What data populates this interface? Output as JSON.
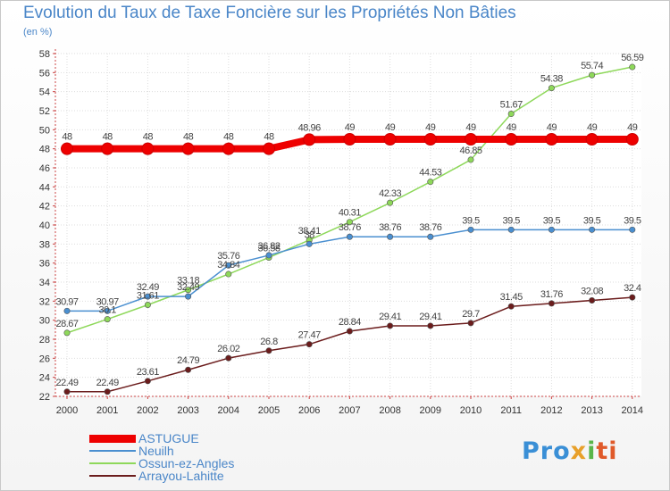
{
  "chart_data": {
    "type": "line",
    "title": "Evolution du Taux de Taxe Foncière sur les Propriétés Non Bâties",
    "ylabel": "(en %)",
    "x": [
      "2000",
      "2001",
      "2002",
      "2003",
      "2004",
      "2005",
      "2006",
      "2007",
      "2008",
      "2009",
      "2010",
      "2011",
      "2012",
      "2013",
      "2014"
    ],
    "ylim": [
      22,
      58
    ],
    "yticks": [
      22,
      24,
      26,
      28,
      30,
      32,
      34,
      36,
      38,
      40,
      42,
      44,
      46,
      48,
      50,
      52,
      54,
      56,
      58
    ],
    "grid": true,
    "series": [
      {
        "name": "ASTUGUE",
        "color": "#ee0000",
        "values": [
          48,
          48,
          48,
          48,
          48,
          48,
          48.96,
          49,
          49,
          49,
          49,
          49,
          49,
          49,
          49
        ],
        "labels": [
          "48",
          "48",
          "48",
          "48",
          "48",
          "48",
          "48.96",
          "49",
          "49",
          "49",
          "49",
          "49",
          "49",
          "49",
          "49"
        ]
      },
      {
        "name": "Neuilh",
        "color": "#4a8fd0",
        "values": [
          30.97,
          30.97,
          32.49,
          32.49,
          35.76,
          36.82,
          38,
          38.76,
          38.76,
          38.76,
          39.5,
          39.5,
          39.5,
          39.5,
          39.5
        ],
        "labels": [
          "30.97",
          "30.97",
          "32.49",
          "32.49",
          "35.76",
          "36.82",
          "38",
          "38.76",
          "38.76",
          "38.76",
          "39.5",
          "39.5",
          "39.5",
          "39.5",
          "39.5"
        ]
      },
      {
        "name": "Ossun-ez-Angles",
        "color": "#8ed85a",
        "values": [
          28.67,
          30.1,
          31.61,
          33.18,
          34.84,
          36.58,
          38.41,
          40.31,
          42.33,
          44.53,
          46.85,
          51.67,
          54.38,
          55.74,
          56.59
        ],
        "labels": [
          "28.67",
          "30.1",
          "31.61",
          "33.18",
          "34.84",
          "36.58",
          "38.41",
          "40.31",
          "42.33",
          "44.53",
          "46.85",
          "51.67",
          "54.38",
          "55.74",
          "56.59"
        ]
      },
      {
        "name": "Arrayou-Lahitte",
        "color": "#6b1c1c",
        "values": [
          22.49,
          22.49,
          23.61,
          24.79,
          26.02,
          26.8,
          27.47,
          28.84,
          29.41,
          29.41,
          29.7,
          31.45,
          31.76,
          32.08,
          32.4
        ],
        "labels": [
          "22.49",
          "22.49",
          "23.61",
          "24.79",
          "26.02",
          "26.8",
          "27.47",
          "28.84",
          "29.41",
          "29.41",
          "29.7",
          "31.45",
          "31.76",
          "32.08",
          "32.4"
        ]
      }
    ]
  },
  "legend": {
    "items": [
      {
        "label": "ASTUGUE",
        "color": "#ee0000"
      },
      {
        "label": "Neuilh",
        "color": "#4a8fd0"
      },
      {
        "label": "Ossun-ez-Angles",
        "color": "#8ed85a"
      },
      {
        "label": "Arrayou-Lahitte",
        "color": "#6b1c1c"
      }
    ]
  },
  "logo": {
    "p1": "Pro",
    "p2": "x",
    "p3": "i",
    "p4": "ti"
  }
}
